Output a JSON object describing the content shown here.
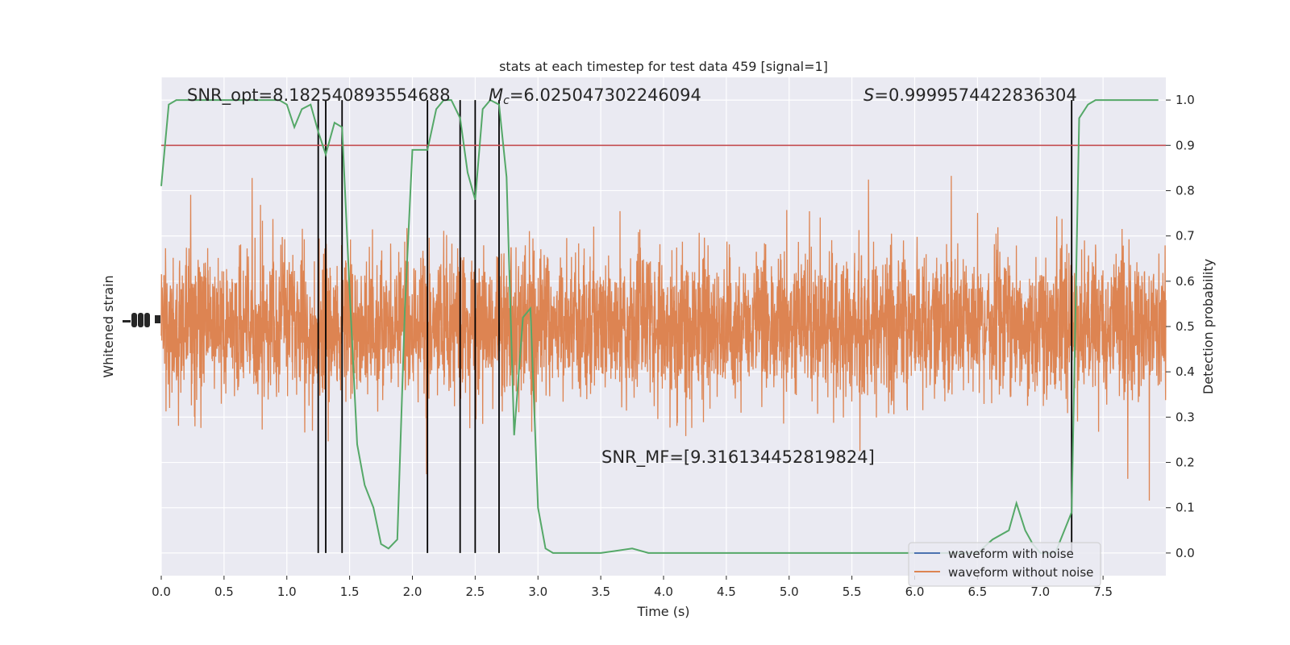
{
  "colors": {
    "background": "#eaeaf2",
    "grid": "#ffffff",
    "noise_waveform": "#4c72b0",
    "clean_waveform": "#dd8452",
    "probability": "#55a868",
    "threshold": "#c44e52",
    "event_lines": "#000000"
  },
  "chart_data": {
    "type": "line",
    "title": "stats at each timestep for test data 459 [signal=1]",
    "xlabel": "Time (s)",
    "ylabel_left": "Whitened strain",
    "ylabel_right": "Detection probability",
    "xlim": [
      0,
      8
    ],
    "ylim_right": [
      -0.05,
      1.05
    ],
    "x_ticks": [
      "0.0",
      "0.5",
      "1.0",
      "1.5",
      "2.0",
      "2.5",
      "3.0",
      "3.5",
      "4.0",
      "4.5",
      "5.0",
      "5.5",
      "6.0",
      "6.5",
      "7.0",
      "7.5"
    ],
    "y_ticks_right": [
      "0.0",
      "0.1",
      "0.2",
      "0.3",
      "0.4",
      "0.5",
      "0.6",
      "0.7",
      "0.8",
      "0.9",
      "1.0"
    ],
    "grid": true,
    "legend_position": "lower-right",
    "annotations": {
      "snr_opt": "SNR_opt=8.182540893554688",
      "mc_symbol": "M",
      "mc_subscript": "c",
      "mc_value": "=6.025047302246094",
      "s_symbol": "S",
      "s_value": "=0.9999574422836304",
      "snr_mf": "SNR_MF=[9.316134452819824]"
    },
    "threshold": 0.9,
    "event_times": [
      1.25,
      1.31,
      1.44,
      2.12,
      2.38,
      2.5,
      2.69,
      7.25
    ],
    "series": [
      {
        "name": "waveform with noise",
        "kind": "strain"
      },
      {
        "name": "waveform without noise",
        "kind": "strain",
        "envelope": "noise band roughly symmetric about center, max excursion about ±0.5 of probability axis range"
      },
      {
        "name": "detection probability",
        "kind": "probability",
        "x": [
          0.0,
          0.06,
          0.12,
          0.25,
          0.5,
          0.75,
          0.94,
          1.0,
          1.06,
          1.12,
          1.19,
          1.25,
          1.31,
          1.38,
          1.44,
          1.5,
          1.56,
          1.62,
          1.69,
          1.75,
          1.81,
          1.88,
          1.94,
          2.0,
          2.06,
          2.12,
          2.19,
          2.25,
          2.31,
          2.38,
          2.44,
          2.5,
          2.56,
          2.62,
          2.69,
          2.75,
          2.81,
          2.88,
          2.94,
          3.0,
          3.06,
          3.12,
          3.25,
          3.5,
          3.75,
          3.88,
          4.0,
          4.5,
          5.0,
          5.5,
          5.62,
          6.0,
          6.5,
          6.62,
          6.75,
          6.81,
          6.88,
          6.94,
          7.0,
          7.12,
          7.25,
          7.31,
          7.38,
          7.44,
          7.5,
          7.75,
          7.94
        ],
        "y": [
          0.81,
          0.99,
          1.0,
          1.0,
          1.0,
          1.0,
          1.0,
          0.99,
          0.94,
          0.98,
          0.99,
          0.93,
          0.88,
          0.95,
          0.94,
          0.58,
          0.24,
          0.15,
          0.1,
          0.02,
          0.01,
          0.03,
          0.54,
          0.89,
          0.89,
          0.89,
          0.98,
          1.0,
          1.0,
          0.96,
          0.84,
          0.78,
          0.98,
          1.0,
          0.99,
          0.83,
          0.26,
          0.52,
          0.54,
          0.1,
          0.01,
          0.0,
          0.0,
          0.0,
          0.01,
          0.0,
          0.0,
          0.0,
          0.0,
          0.0,
          0.0,
          0.0,
          0.0,
          0.03,
          0.05,
          0.11,
          0.05,
          0.02,
          0.0,
          0.0,
          0.09,
          0.96,
          0.99,
          1.0,
          1.0,
          1.0,
          1.0
        ]
      }
    ]
  }
}
